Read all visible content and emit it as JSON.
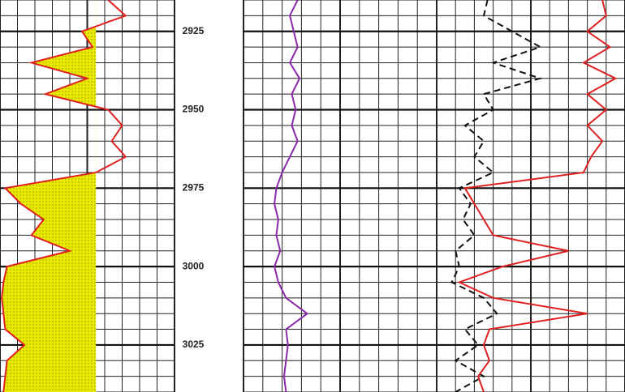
{
  "chart_data": {
    "type": "log",
    "ylim": [
      2915,
      3040
    ],
    "yticks": [
      2925,
      2950,
      2975,
      3000,
      3025
    ],
    "depths": [
      2915,
      2920,
      2925,
      2930,
      2935,
      2940,
      2945,
      2950,
      2955,
      2960,
      2965,
      2970,
      2975,
      2980,
      2985,
      2990,
      2995,
      3000,
      3005,
      3010,
      3015,
      3020,
      3025,
      3030,
      3035,
      3040
    ],
    "xlim": [
      0,
      100
    ],
    "grid": true,
    "series": [
      {
        "track": 0,
        "color": "#e02020",
        "dash": false,
        "fill_to": 55,
        "fill_color": "#e8e800",
        "values": [
          62,
          72,
          47,
          53,
          18,
          50,
          26,
          62,
          70,
          64,
          72,
          55,
          3,
          12,
          25,
          18,
          40,
          4,
          2,
          1,
          2,
          3,
          14,
          4,
          3,
          2
        ]
      },
      {
        "track": 1,
        "color": "#8a2aa8",
        "dash": false,
        "values": [
          28,
          24,
          26,
          28,
          24,
          29,
          25,
          27,
          25,
          28,
          24,
          20,
          17,
          16,
          18,
          17,
          19,
          16,
          18,
          22,
          33,
          22,
          23,
          22,
          21,
          22
        ]
      },
      {
        "track": 2,
        "color": "#111111",
        "dash": true,
        "values": [
          27,
          25,
          40,
          55,
          30,
          55,
          25,
          30,
          15,
          25,
          20,
          30,
          12,
          18,
          14,
          20,
          10,
          12,
          8,
          25,
          32,
          15,
          22,
          10,
          25,
          10
        ]
      },
      {
        "track": 2,
        "color": "#e02020",
        "dash": false,
        "values": [
          88,
          90,
          80,
          92,
          78,
          95,
          80,
          90,
          80,
          88,
          82,
          78,
          15,
          20,
          25,
          30,
          70,
          35,
          12,
          30,
          80,
          28,
          25,
          28,
          22,
          25
        ]
      }
    ]
  }
}
